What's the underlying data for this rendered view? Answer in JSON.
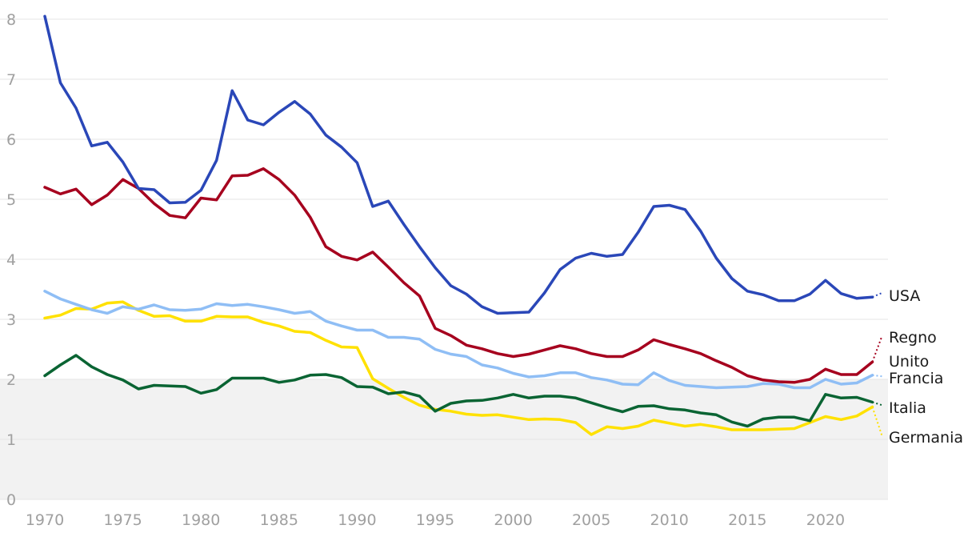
{
  "chart_data": {
    "type": "line",
    "title": "",
    "xlabel": "",
    "ylabel": "",
    "xlim": [
      1970,
      2024
    ],
    "ylim": [
      0,
      8
    ],
    "grid": true,
    "shaded_band": {
      "from": 0,
      "to": 2,
      "color": "#f2f2f2"
    },
    "x_ticks": [
      1970,
      1975,
      1980,
      1985,
      1990,
      1995,
      2000,
      2005,
      2010,
      2015,
      2020
    ],
    "y_ticks": [
      0,
      1,
      2,
      3,
      4,
      5,
      6,
      7,
      8
    ],
    "x": [
      1970,
      1971,
      1972,
      1973,
      1974,
      1975,
      1976,
      1977,
      1978,
      1979,
      1980,
      1981,
      1982,
      1983,
      1984,
      1985,
      1986,
      1987,
      1988,
      1989,
      1990,
      1991,
      1992,
      1993,
      1994,
      1995,
      1996,
      1997,
      1998,
      1999,
      2000,
      2001,
      2002,
      2003,
      2004,
      2005,
      2006,
      2007,
      2008,
      2009,
      2010,
      2011,
      2012,
      2013,
      2014,
      2015,
      2016,
      2017,
      2018,
      2019,
      2020,
      2021,
      2022,
      2023
    ],
    "series": [
      {
        "name": "USA",
        "label_lines": [
          "USA"
        ],
        "color": "#2a47b8",
        "values": [
          8.05,
          6.94,
          6.52,
          5.89,
          5.95,
          5.62,
          5.18,
          5.16,
          4.94,
          4.95,
          5.15,
          5.65,
          6.81,
          6.32,
          6.24,
          6.45,
          6.63,
          6.42,
          6.07,
          5.87,
          5.61,
          4.88,
          4.97,
          4.58,
          4.21,
          3.86,
          3.56,
          3.42,
          3.21,
          3.1,
          3.11,
          3.12,
          3.44,
          3.83,
          4.02,
          4.1,
          4.05,
          4.08,
          4.45,
          4.88,
          4.9,
          4.83,
          4.47,
          4.02,
          3.68,
          3.47,
          3.41,
          3.31,
          3.31,
          3.42,
          3.65,
          3.43,
          3.35,
          3.37
        ],
        "extension": 3.44
      },
      {
        "name": "Regno Unito",
        "label_lines": [
          "Regno",
          "Unito"
        ],
        "color": "#a6001e",
        "values": [
          5.2,
          5.09,
          5.17,
          4.91,
          5.07,
          5.33,
          5.18,
          4.93,
          4.73,
          4.69,
          5.02,
          4.99,
          5.39,
          5.4,
          5.51,
          5.33,
          5.07,
          4.7,
          4.21,
          4.05,
          3.99,
          4.12,
          3.87,
          3.61,
          3.39,
          2.85,
          2.73,
          2.57,
          2.51,
          2.43,
          2.38,
          2.42,
          2.49,
          2.56,
          2.51,
          2.43,
          2.38,
          2.38,
          2.49,
          2.66,
          2.58,
          2.51,
          2.43,
          2.31,
          2.2,
          2.06,
          1.99,
          1.96,
          1.95,
          2.0,
          2.17,
          2.08,
          2.08,
          2.29
        ],
        "extension": 2.72
      },
      {
        "name": "Francia",
        "label_lines": [
          "Francia"
        ],
        "color": "#8fbef5",
        "values": [
          3.47,
          3.34,
          3.25,
          3.16,
          3.1,
          3.21,
          3.17,
          3.24,
          3.16,
          3.15,
          3.17,
          3.26,
          3.23,
          3.25,
          3.21,
          3.16,
          3.1,
          3.13,
          2.97,
          2.89,
          2.82,
          2.82,
          2.7,
          2.7,
          2.67,
          2.5,
          2.42,
          2.38,
          2.24,
          2.19,
          2.1,
          2.04,
          2.06,
          2.11,
          2.11,
          2.03,
          1.99,
          1.92,
          1.91,
          2.11,
          1.98,
          1.9,
          1.88,
          1.86,
          1.87,
          1.88,
          1.93,
          1.92,
          1.86,
          1.86,
          2.0,
          1.92,
          1.94,
          2.07
        ],
        "extension": 2.05
      },
      {
        "name": "Italia",
        "label_lines": [
          "Italia"
        ],
        "color": "#0a6433",
        "values": [
          2.06,
          2.24,
          2.4,
          2.21,
          2.08,
          1.99,
          1.84,
          1.9,
          1.89,
          1.88,
          1.77,
          1.83,
          2.02,
          2.02,
          2.02,
          1.95,
          1.99,
          2.07,
          2.08,
          2.03,
          1.88,
          1.87,
          1.76,
          1.79,
          1.72,
          1.47,
          1.6,
          1.64,
          1.65,
          1.69,
          1.75,
          1.69,
          1.72,
          1.72,
          1.69,
          1.61,
          1.53,
          1.46,
          1.55,
          1.56,
          1.51,
          1.49,
          1.44,
          1.41,
          1.29,
          1.22,
          1.34,
          1.37,
          1.37,
          1.31,
          1.75,
          1.69,
          1.7,
          1.62
        ],
        "extension": 1.57
      },
      {
        "name": "Germania",
        "label_lines": [
          "Germania"
        ],
        "color": "#ffe100",
        "values": [
          3.02,
          3.07,
          3.18,
          3.17,
          3.27,
          3.29,
          3.15,
          3.05,
          3.06,
          2.97,
          2.97,
          3.05,
          3.04,
          3.04,
          2.95,
          2.89,
          2.8,
          2.78,
          2.65,
          2.54,
          2.53,
          2.01,
          1.85,
          1.7,
          1.57,
          1.5,
          1.47,
          1.42,
          1.4,
          1.41,
          1.37,
          1.33,
          1.34,
          1.33,
          1.28,
          1.08,
          1.21,
          1.18,
          1.22,
          1.32,
          1.27,
          1.22,
          1.25,
          1.21,
          1.16,
          1.16,
          1.16,
          1.17,
          1.18,
          1.28,
          1.38,
          1.33,
          1.39,
          1.54
        ],
        "extension": 1.06
      }
    ]
  }
}
